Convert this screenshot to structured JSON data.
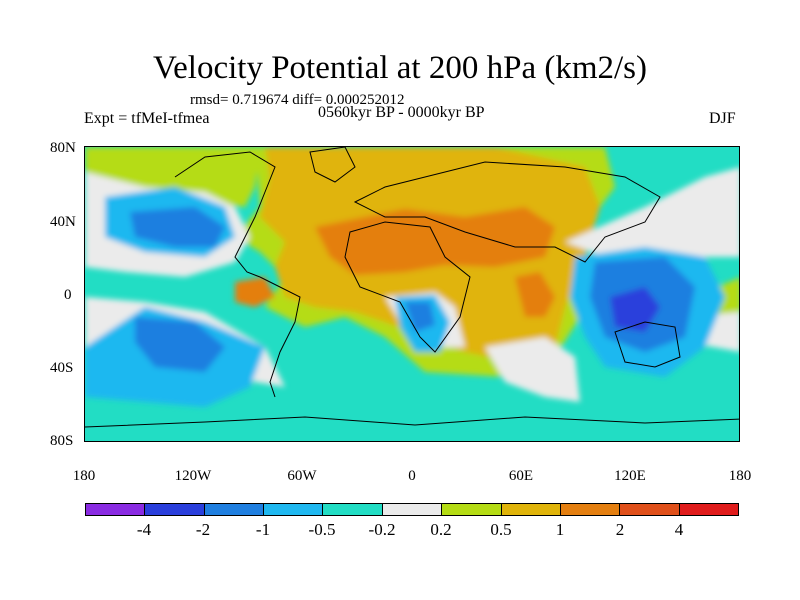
{
  "title": "Velocity Potential at 200 hPa (km2/s)",
  "stats": "rmsd= 0.719674 diff= 0.000252012",
  "experiment": "Expt = tfMeI-tfmea",
  "period": "0560kyr BP - 0000kyr BP",
  "season": "DJF",
  "y_axis_labels": [
    "80N",
    "40N",
    "0",
    "40S",
    "80S"
  ],
  "x_axis_labels": [
    "180",
    "120W",
    "60W",
    "0",
    "60E",
    "120E",
    "180"
  ],
  "colorbar": {
    "levels": [
      "-4",
      "-2",
      "-1",
      "-0.5",
      "-0.2",
      "0.2",
      "0.5",
      "1",
      "2",
      "4"
    ],
    "colors": [
      "#8a2be2",
      "#2a3fdc",
      "#1f7fe0",
      "#1fb8f0",
      "#22ddc4",
      "#ebebeb",
      "#b5dc14",
      "#e0b40a",
      "#e47f10",
      "#e0501a",
      "#e01c1c"
    ]
  },
  "map_colors": {
    "neg_strong": "#2a3fdc",
    "neg_mid": "#1f7fe0",
    "neg_light": "#1fb8f0",
    "neg_weak": "#22ddc4",
    "neutral": "#ebebeb",
    "pos_weak": "#b5dc14",
    "pos_light": "#e0b40a",
    "pos_mid": "#e47f10"
  }
}
